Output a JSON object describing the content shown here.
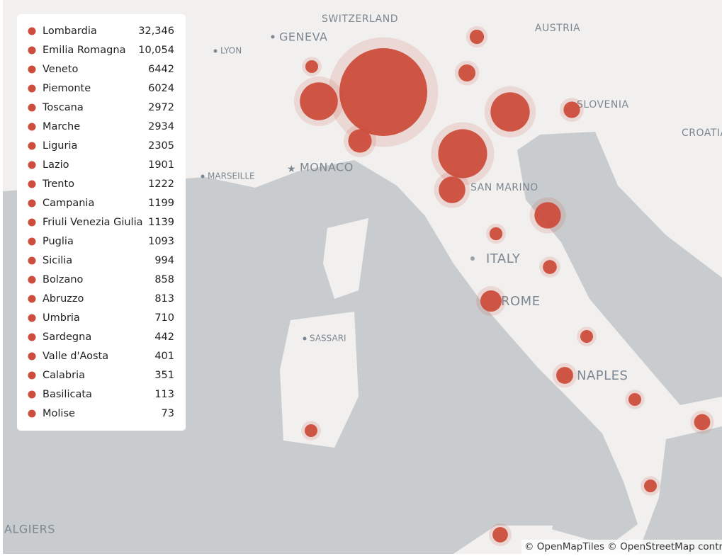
{
  "legend": [
    {
      "name": "Lombardia",
      "value": 32346,
      "label": "32,346"
    },
    {
      "name": "Emilia Romagna",
      "value": 10054,
      "label": "10,054"
    },
    {
      "name": "Veneto",
      "value": 6442,
      "label": "6442"
    },
    {
      "name": "Piemonte",
      "value": 6024,
      "label": "6024"
    },
    {
      "name": "Toscana",
      "value": 2972,
      "label": "2972"
    },
    {
      "name": "Marche",
      "value": 2934,
      "label": "2934"
    },
    {
      "name": "Liguria",
      "value": 2305,
      "label": "2305"
    },
    {
      "name": "Lazio",
      "value": 1901,
      "label": "1901"
    },
    {
      "name": "Trento",
      "value": 1222,
      "label": "1222"
    },
    {
      "name": "Campania",
      "value": 1199,
      "label": "1199"
    },
    {
      "name": "Friuli Venezia Giulia",
      "value": 1139,
      "label": "1139"
    },
    {
      "name": "Puglia",
      "value": 1093,
      "label": "1093"
    },
    {
      "name": "Sicilia",
      "value": 994,
      "label": "994"
    },
    {
      "name": "Bolzano",
      "value": 858,
      "label": "858"
    },
    {
      "name": "Abruzzo",
      "value": 813,
      "label": "813"
    },
    {
      "name": "Umbria",
      "value": 710,
      "label": "710"
    },
    {
      "name": "Sardegna",
      "value": 442,
      "label": "442"
    },
    {
      "name": "Valle d'Aosta",
      "value": 401,
      "label": "401"
    },
    {
      "name": "Calabria",
      "value": 351,
      "label": "351"
    },
    {
      "name": "Basilicata",
      "value": 113,
      "label": "113"
    },
    {
      "name": "Molise",
      "value": 73,
      "label": "73"
    }
  ],
  "marker_color": "#cc4d3c",
  "map_labels": [
    "SWITZERLAND",
    "GENEVA",
    "LYON",
    "AUSTRIA",
    "SLOVENIA",
    "CROATIA",
    "MARSEILLE",
    "MONACO",
    "SAN MARINO",
    "ITALY",
    "ROME",
    "SASSARI",
    "NAPLES",
    "ALGIERS"
  ],
  "attribution": "© OpenMapTiles © OpenStreetMap contr"
}
